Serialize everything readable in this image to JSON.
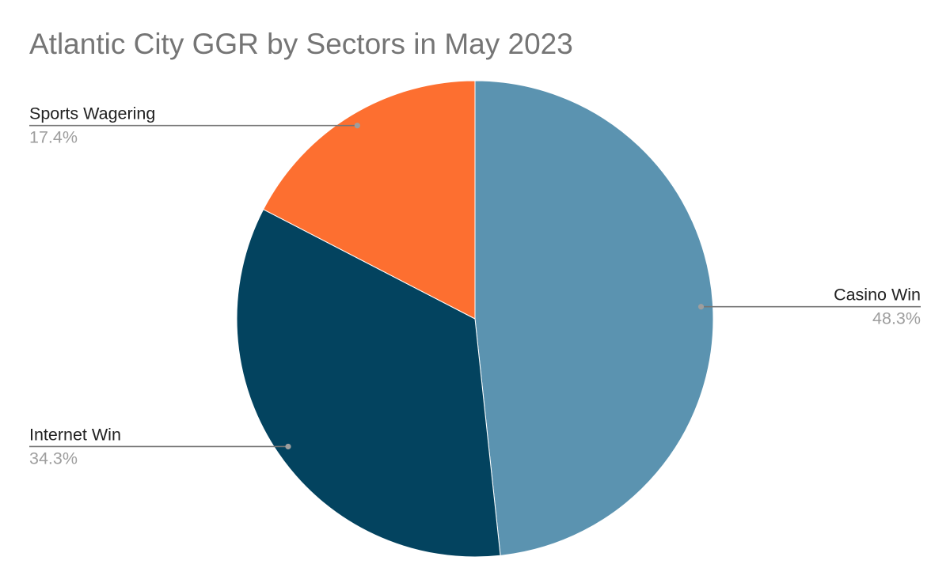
{
  "chart_data": {
    "type": "pie",
    "title": "Atlantic City GGR by Sectors in May 2023",
    "slices": [
      {
        "label": "Casino Win",
        "value": 48.3,
        "display": "48.3%",
        "color": "#5b93b0"
      },
      {
        "label": "Internet Win",
        "value": 34.3,
        "display": "34.3%",
        "color": "#03435f"
      },
      {
        "label": "Sports Wagering",
        "value": 17.4,
        "display": "17.4%",
        "color": "#fd6f30"
      }
    ],
    "start_angle": "12 o'clock",
    "direction": "clockwise",
    "label_style": "leader lines"
  }
}
